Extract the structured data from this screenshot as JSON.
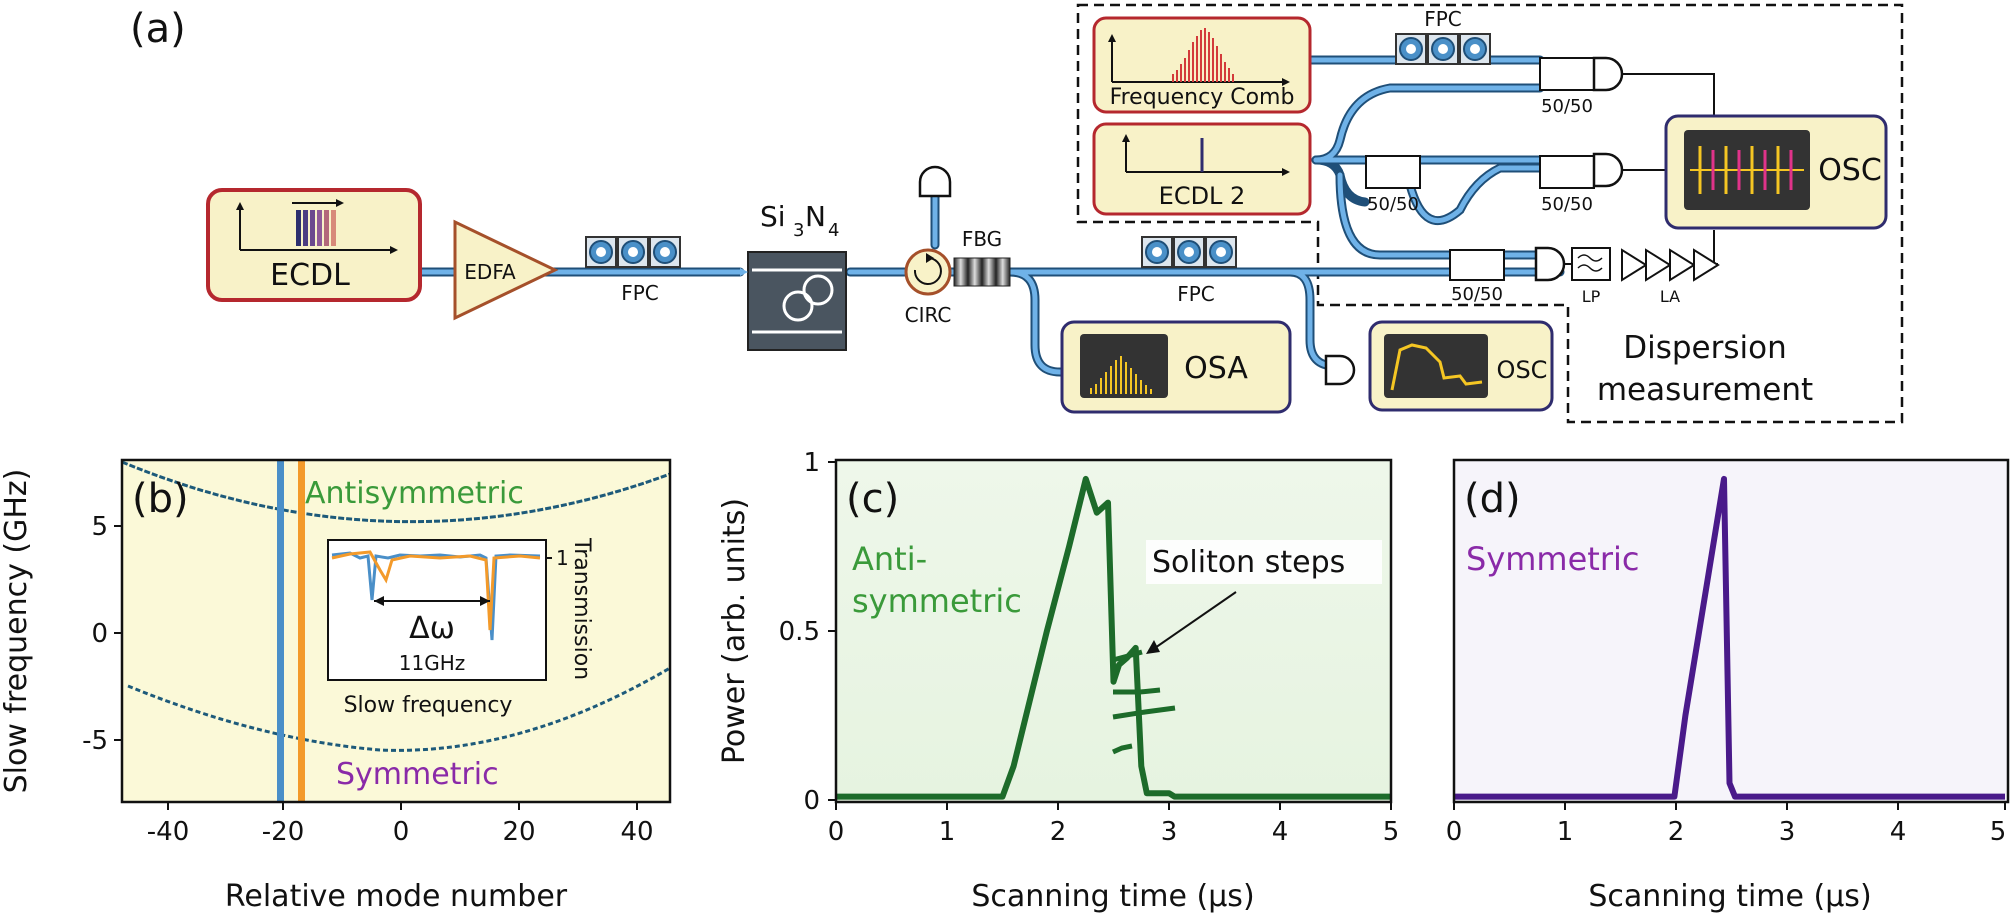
{
  "panel_a": {
    "label": "(a)",
    "ecdl": "ECDL",
    "edfa": "EDFA",
    "fpc": "FPC",
    "chip_main": "Si",
    "chip_sub": "3",
    "chip_n": "N",
    "chip_sub2": "4",
    "circ": "CIRC",
    "fbg": "FBG",
    "osa": "OSA",
    "osc": "OSC",
    "comb": "Frequency Comb",
    "ecdl2": "ECDL 2",
    "ratio": "50/50",
    "lp": "LP",
    "la": "LA",
    "dispersion_line1": "Dispersion",
    "dispersion_line2": "measurement"
  },
  "panel_b": {
    "label": "(b)",
    "antisymmetric": "Antisymmetric",
    "symmetric": "Symmetric",
    "ylabel": "Slow frequency (GHz)",
    "xlabel": "Relative mode number",
    "xticks": [
      "-40",
      "-20",
      "0",
      "20",
      "40"
    ],
    "yticks": [
      "5",
      "0",
      "-5"
    ],
    "inset_delta": "Δω",
    "inset_ghz": "11GHz",
    "inset_xlabel": "Slow frequency",
    "inset_ylabel": "Transmission",
    "inset_tick": "1"
  },
  "panel_c": {
    "label": "(c)",
    "anno1": "Anti-",
    "anno2": "symmetric",
    "soliton": "Soliton steps",
    "ylabel": "Power (arb. units)",
    "xlabel": "Scanning time (μs)",
    "xticks": [
      "0",
      "1",
      "2",
      "3",
      "4",
      "5"
    ],
    "yticks": [
      "1",
      "0.5",
      "0"
    ]
  },
  "panel_d": {
    "label": "(d)",
    "anno": "Symmetric",
    "xlabel": "Scanning time (μs)",
    "xticks": [
      "0",
      "1",
      "2",
      "3",
      "4",
      "5"
    ]
  },
  "colors": {
    "fiber": "#3d8fd1",
    "box_fill": "#f8f2c8",
    "red_border": "#b5282e",
    "navy_border": "#2f2c6e",
    "green": "#1d6b2a",
    "green_text": "#3a9a3a",
    "purple": "#4a1a8a",
    "purple_text": "#8a2aa8",
    "orange": "#f39a2a",
    "blue_line": "#4a8fc8"
  },
  "chart_data": [
    {
      "type": "scatter",
      "panel": "b",
      "xlabel": "Relative mode number",
      "ylabel": "Slow frequency (GHz)",
      "xlim": [
        -43,
        43
      ],
      "ylim": [
        -8,
        8
      ],
      "series": [
        {
          "name": "Antisymmetric",
          "x": [
            -40,
            -30,
            -20,
            -10,
            0,
            10,
            20,
            30,
            40
          ],
          "y": [
            7.8,
            6.6,
            5.7,
            5.1,
            4.8,
            4.9,
            5.4,
            6.3,
            7.5
          ]
        },
        {
          "name": "Symmetric",
          "x": [
            -43,
            -35,
            -28,
            -19,
            -10,
            0,
            10,
            20,
            30,
            40
          ],
          "y": [
            -2.6,
            -3.4,
            -4.4,
            -5.4,
            -5.7,
            -5.8,
            -5.3,
            -4.6,
            -3.5,
            -2.0
          ]
        }
      ],
      "vlines": [
        -19,
        -17
      ]
    },
    {
      "type": "line",
      "panel": "c",
      "xlabel": "Scanning time (μs)",
      "ylabel": "Power (arb. units)",
      "xlim": [
        0,
        5
      ],
      "ylim": [
        0,
        1
      ],
      "series": [
        {
          "x": [
            0,
            1.5,
            1.6,
            1.9,
            2.1,
            2.25,
            2.35,
            2.45,
            2.5,
            2.55,
            2.62,
            2.7,
            2.75,
            2.8,
            2.9,
            3.0,
            3.05,
            5.0
          ],
          "y": [
            0.01,
            0.01,
            0.1,
            0.5,
            0.75,
            0.95,
            0.85,
            0.88,
            0.35,
            0.4,
            0.42,
            0.45,
            0.1,
            0.02,
            0.02,
            0.02,
            0.01,
            0.01
          ]
        }
      ]
    },
    {
      "type": "line",
      "panel": "d",
      "xlabel": "Scanning time (μs)",
      "xlim": [
        0,
        5
      ],
      "ylim": [
        0,
        1
      ],
      "series": [
        {
          "x": [
            0,
            2.0,
            2.1,
            2.3,
            2.4,
            2.45,
            2.5,
            2.55,
            5.0
          ],
          "y": [
            0.01,
            0.01,
            0.25,
            0.65,
            0.85,
            0.95,
            0.05,
            0.01,
            0.01
          ]
        }
      ]
    }
  ]
}
